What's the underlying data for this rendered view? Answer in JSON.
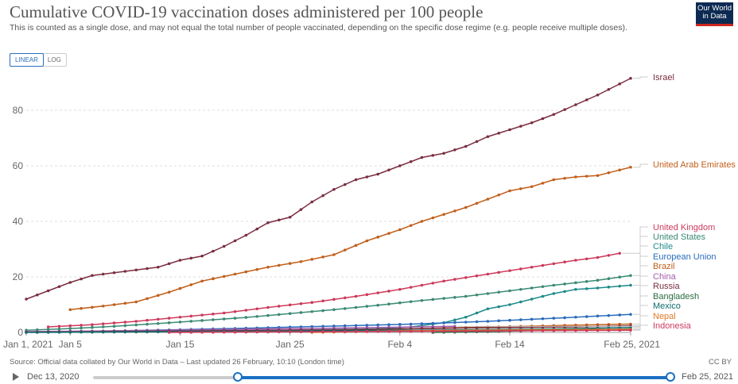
{
  "header": {
    "title": "Cumulative COVID-19 vaccination doses administered per 100 people",
    "subtitle": "This is counted as a single dose, and may not equal the total number of people vaccinated, depending on the specific dose regime (e.g. people receive multiple doses).",
    "logo_line1": "Our World",
    "logo_line2": "in Data"
  },
  "controls": {
    "linear_label": "LINEAR",
    "log_label": "LOG",
    "active": "linear"
  },
  "footer": {
    "source": "Source: Official data collated by Our World in Data – Last updated 26 February, 10:10 (London time)",
    "license": "CC BY"
  },
  "timeline": {
    "start_label": "Dec 13, 2020",
    "end_label": "Feb 25, 2021"
  },
  "chart_data": {
    "type": "line",
    "title": "Cumulative COVID-19 vaccination doses administered per 100 people",
    "x_axis": {
      "type": "date",
      "range": [
        "2021-01-01",
        "2021-02-25"
      ],
      "tick_labels": [
        "Jan 1, 2021",
        "Jan 5",
        "Jan 15",
        "Jan 25",
        "Feb 4",
        "Feb 14",
        "Feb 25, 2021"
      ]
    },
    "y_axis": {
      "range": [
        0,
        92
      ],
      "ticks": [
        0,
        20,
        40,
        60,
        80
      ]
    },
    "grid": "horizontal dashed",
    "legend": "right, labels at line ends",
    "series": [
      {
        "name": "Israel",
        "color": "#7a2e40",
        "points": [
          [
            "2021-01-01",
            12.0
          ],
          [
            "2021-01-03",
            15.0
          ],
          [
            "2021-01-05",
            18.0
          ],
          [
            "2021-01-07",
            20.5
          ],
          [
            "2021-01-10",
            22.0
          ],
          [
            "2021-01-13",
            23.5
          ],
          [
            "2021-01-15",
            26.0
          ],
          [
            "2021-01-17",
            27.5
          ],
          [
            "2021-01-19",
            31.0
          ],
          [
            "2021-01-21",
            35.0
          ],
          [
            "2021-01-23",
            39.5
          ],
          [
            "2021-01-25",
            41.5
          ],
          [
            "2021-01-27",
            47.0
          ],
          [
            "2021-01-29",
            51.5
          ],
          [
            "2021-01-31",
            55.0
          ],
          [
            "2021-02-02",
            57.0
          ],
          [
            "2021-02-04",
            60.0
          ],
          [
            "2021-02-06",
            63.0
          ],
          [
            "2021-02-08",
            64.5
          ],
          [
            "2021-02-10",
            67.0
          ],
          [
            "2021-02-12",
            70.5
          ],
          [
            "2021-02-14",
            73.0
          ],
          [
            "2021-02-16",
            75.5
          ],
          [
            "2021-02-18",
            78.5
          ],
          [
            "2021-02-20",
            82.0
          ],
          [
            "2021-02-22",
            85.5
          ],
          [
            "2021-02-25",
            91.5
          ]
        ]
      },
      {
        "name": "United Arab Emirates",
        "color": "#c15f1b",
        "points": [
          [
            "2021-01-05",
            8.2
          ],
          [
            "2021-01-08",
            9.5
          ],
          [
            "2021-01-11",
            11.0
          ],
          [
            "2021-01-14",
            14.5
          ],
          [
            "2021-01-17",
            18.5
          ],
          [
            "2021-01-20",
            21.0
          ],
          [
            "2021-01-23",
            23.5
          ],
          [
            "2021-01-26",
            25.5
          ],
          [
            "2021-01-29",
            28.0
          ],
          [
            "2021-02-01",
            33.0
          ],
          [
            "2021-02-04",
            37.0
          ],
          [
            "2021-02-06",
            40.0
          ],
          [
            "2021-02-08",
            42.5
          ],
          [
            "2021-02-10",
            45.0
          ],
          [
            "2021-02-12",
            48.0
          ],
          [
            "2021-02-14",
            51.0
          ],
          [
            "2021-02-16",
            52.5
          ],
          [
            "2021-02-18",
            55.0
          ],
          [
            "2021-02-20",
            56.0
          ],
          [
            "2021-02-22",
            56.5
          ],
          [
            "2021-02-25",
            59.5
          ]
        ]
      },
      {
        "name": "United Kingdom",
        "color": "#cc3a5c",
        "points": [
          [
            "2021-01-03",
            2.0
          ],
          [
            "2021-01-07",
            2.8
          ],
          [
            "2021-01-11",
            4.0
          ],
          [
            "2021-01-15",
            5.5
          ],
          [
            "2021-01-19",
            7.0
          ],
          [
            "2021-01-23",
            9.0
          ],
          [
            "2021-01-27",
            10.8
          ],
          [
            "2021-01-31",
            13.0
          ],
          [
            "2021-02-04",
            15.5
          ],
          [
            "2021-02-08",
            18.5
          ],
          [
            "2021-02-12",
            21.0
          ],
          [
            "2021-02-16",
            23.5
          ],
          [
            "2021-02-20",
            26.0
          ],
          [
            "2021-02-22",
            27.0
          ],
          [
            "2021-02-24",
            28.5
          ]
        ]
      },
      {
        "name": "United States",
        "color": "#3a8a74",
        "points": [
          [
            "2021-01-01",
            0.8
          ],
          [
            "2021-01-05",
            1.4
          ],
          [
            "2021-01-09",
            2.2
          ],
          [
            "2021-01-13",
            3.2
          ],
          [
            "2021-01-17",
            4.3
          ],
          [
            "2021-01-21",
            5.4
          ],
          [
            "2021-01-25",
            6.8
          ],
          [
            "2021-01-29",
            8.2
          ],
          [
            "2021-02-02",
            9.8
          ],
          [
            "2021-02-06",
            11.5
          ],
          [
            "2021-02-10",
            13.0
          ],
          [
            "2021-02-14",
            15.0
          ],
          [
            "2021-02-18",
            17.0
          ],
          [
            "2021-02-22",
            18.8
          ],
          [
            "2021-02-25",
            20.5
          ]
        ]
      },
      {
        "name": "Chile",
        "color": "#1f8a8a",
        "points": [
          [
            "2021-01-01",
            0.1
          ],
          [
            "2021-01-15",
            0.4
          ],
          [
            "2021-01-25",
            0.8
          ],
          [
            "2021-02-02",
            1.3
          ],
          [
            "2021-02-05",
            2.0
          ],
          [
            "2021-02-08",
            3.5
          ],
          [
            "2021-02-10",
            5.5
          ],
          [
            "2021-02-12",
            8.5
          ],
          [
            "2021-02-14",
            10.0
          ],
          [
            "2021-02-16",
            12.0
          ],
          [
            "2021-02-18",
            14.0
          ],
          [
            "2021-02-20",
            15.5
          ],
          [
            "2021-02-22",
            16.0
          ],
          [
            "2021-02-25",
            17.0
          ]
        ]
      },
      {
        "name": "European Union",
        "color": "#286bbb",
        "points": [
          [
            "2021-01-01",
            0.1
          ],
          [
            "2021-01-08",
            0.5
          ],
          [
            "2021-01-15",
            1.0
          ],
          [
            "2021-01-22",
            1.6
          ],
          [
            "2021-01-29",
            2.3
          ],
          [
            "2021-02-05",
            3.0
          ],
          [
            "2021-02-12",
            4.0
          ],
          [
            "2021-02-19",
            5.3
          ],
          [
            "2021-02-25",
            6.5
          ]
        ]
      },
      {
        "name": "Brazil",
        "color": "#c15f1b",
        "points": [
          [
            "2021-01-18",
            0.1
          ],
          [
            "2021-01-25",
            0.6
          ],
          [
            "2021-02-01",
            1.0
          ],
          [
            "2021-02-08",
            1.6
          ],
          [
            "2021-02-15",
            2.2
          ],
          [
            "2021-02-22",
            2.8
          ],
          [
            "2021-02-25",
            3.0
          ]
        ]
      },
      {
        "name": "China",
        "color": "#a25bab",
        "points": [
          [
            "2021-01-01",
            0.3
          ],
          [
            "2021-01-10",
            0.6
          ],
          [
            "2021-01-20",
            1.1
          ],
          [
            "2021-01-30",
            1.6
          ],
          [
            "2021-02-09",
            2.2
          ]
        ]
      },
      {
        "name": "Russia",
        "color": "#7a2e40",
        "points": [
          [
            "2021-01-01",
            0.1
          ],
          [
            "2021-01-15",
            0.5
          ],
          [
            "2021-01-30",
            1.0
          ],
          [
            "2021-02-10",
            1.6
          ],
          [
            "2021-02-20",
            2.0
          ],
          [
            "2021-02-25",
            2.4
          ]
        ]
      },
      {
        "name": "Bangladesh",
        "color": "#2a6b3f",
        "points": [
          [
            "2021-02-07",
            0.0
          ],
          [
            "2021-02-12",
            0.3
          ],
          [
            "2021-02-18",
            0.8
          ],
          [
            "2021-02-25",
            1.2
          ]
        ]
      },
      {
        "name": "Mexico",
        "color": "#0f6b6b",
        "points": [
          [
            "2021-01-01",
            0.0
          ],
          [
            "2021-01-12",
            0.2
          ],
          [
            "2021-01-25",
            0.5
          ],
          [
            "2021-02-05",
            0.8
          ],
          [
            "2021-02-18",
            1.2
          ],
          [
            "2021-02-25",
            1.8
          ]
        ]
      },
      {
        "name": "Nepal",
        "color": "#e07a2a",
        "points": [
          [
            "2021-01-27",
            0.0
          ],
          [
            "2021-02-05",
            0.6
          ],
          [
            "2021-02-15",
            0.9
          ],
          [
            "2021-02-25",
            1.1
          ]
        ]
      },
      {
        "name": "Indonesia",
        "color": "#cc3a5c",
        "points": [
          [
            "2021-01-14",
            0.0
          ],
          [
            "2021-01-25",
            0.2
          ],
          [
            "2021-02-05",
            0.4
          ],
          [
            "2021-02-15",
            0.6
          ],
          [
            "2021-02-25",
            0.8
          ]
        ]
      }
    ]
  }
}
